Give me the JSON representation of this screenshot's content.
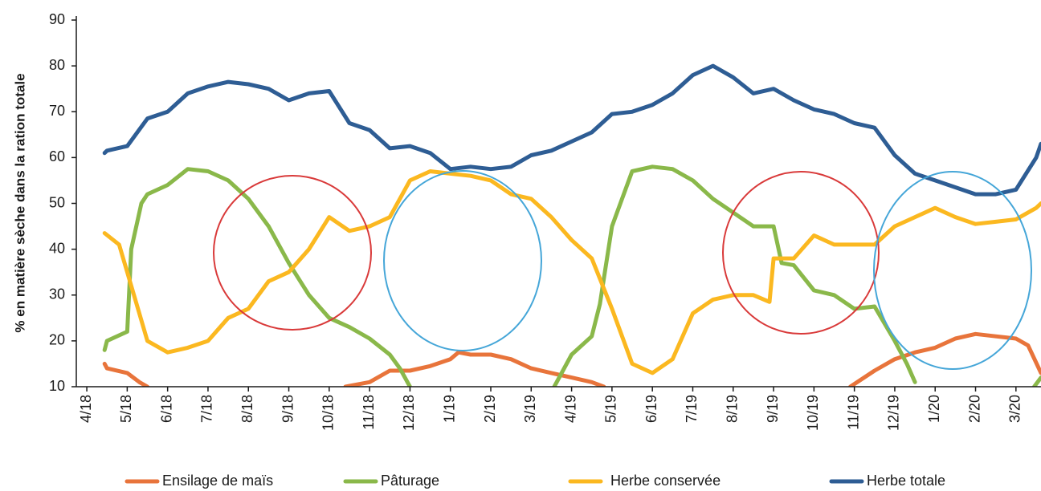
{
  "chart_data": {
    "type": "line",
    "y_label": "% en matière sèche dans la ration totale",
    "xlim": [
      -0.26,
      23.62
    ],
    "xticks": [
      {
        "value": 0,
        "label": "4/18"
      },
      {
        "value": 1,
        "label": "5/18"
      },
      {
        "value": 2,
        "label": "6/18"
      },
      {
        "value": 3,
        "label": "7/18"
      },
      {
        "value": 4,
        "label": "8/18"
      },
      {
        "value": 5,
        "label": "9/18"
      },
      {
        "value": 6,
        "label": "10/18"
      },
      {
        "value": 7,
        "label": "11/18"
      },
      {
        "value": 8,
        "label": "12/18"
      },
      {
        "value": 9,
        "label": "1/19"
      },
      {
        "value": 10,
        "label": "2/19"
      },
      {
        "value": 11,
        "label": "3/19"
      },
      {
        "value": 12,
        "label": "4/19"
      },
      {
        "value": 13,
        "label": "5/19"
      },
      {
        "value": 14,
        "label": "6/19"
      },
      {
        "value": 15,
        "label": "7/19"
      },
      {
        "value": 16,
        "label": "8/19"
      },
      {
        "value": 17,
        "label": "9/19"
      },
      {
        "value": 18,
        "label": "10/19"
      },
      {
        "value": 19,
        "label": "11/19"
      },
      {
        "value": 20,
        "label": "12/19"
      },
      {
        "value": 21,
        "label": "1/20"
      },
      {
        "value": 22,
        "label": "2/20"
      },
      {
        "value": 23,
        "label": "3/20"
      }
    ],
    "ylim": [
      10,
      90
    ],
    "yticks": [
      10,
      20,
      30,
      40,
      50,
      60,
      70,
      80,
      90
    ],
    "legend": "bottom",
    "series": [
      {
        "name": "Ensilage de maïs",
        "color": "#e8743b",
        "x": [
          0.44,
          0.5,
          1.0,
          1.3,
          1.5,
          4.0,
          6.4,
          7.0,
          7.5,
          8.0,
          8.5,
          9.0,
          9.2,
          9.5,
          10.0,
          10.5,
          11.0,
          11.5,
          12.0,
          12.5,
          12.8,
          16.0,
          18.9,
          19.5,
          20.0,
          20.5,
          21.0,
          21.5,
          22.0,
          22.5,
          23.0,
          23.3,
          23.62
        ],
        "values": [
          15,
          14,
          13,
          11,
          10,
          null,
          10,
          11,
          13.5,
          13.5,
          14.5,
          16,
          17.5,
          17,
          17,
          16,
          14,
          13,
          12,
          11,
          10,
          null,
          10,
          13.5,
          16,
          17.5,
          18.5,
          20.5,
          21.5,
          21,
          20.5,
          19,
          13
        ]
      },
      {
        "name": "Pâturage",
        "color": "#8ab84a",
        "x": [
          0.44,
          0.5,
          1.0,
          1.1,
          1.35,
          1.5,
          2.0,
          2.5,
          3.0,
          3.5,
          4.0,
          4.5,
          5.0,
          5.5,
          6.0,
          6.5,
          7.0,
          7.5,
          7.75,
          8.0,
          10.0,
          11.57,
          12.0,
          12.5,
          12.7,
          13.0,
          13.5,
          14.0,
          14.5,
          15.0,
          15.5,
          16.0,
          16.5,
          17.0,
          17.2,
          17.5,
          18.0,
          18.5,
          19.0,
          19.5,
          20.0,
          20.3,
          20.5,
          22.0,
          23.45,
          23.62
        ],
        "values": [
          18,
          20,
          22,
          40,
          50,
          52,
          54,
          57.5,
          57,
          55,
          51,
          45,
          37,
          30,
          25,
          23,
          20.5,
          17,
          14,
          10,
          null,
          10,
          17,
          21,
          28,
          45,
          57,
          58,
          57.5,
          55,
          51,
          48,
          45,
          45,
          37,
          36.5,
          31,
          30,
          27,
          27.5,
          20,
          15,
          11,
          null,
          10,
          12
        ]
      },
      {
        "name": "Herbe conservée",
        "color": "#fbb820",
        "x": [
          0.44,
          0.8,
          1.0,
          1.5,
          2.0,
          2.5,
          3.0,
          3.5,
          4.0,
          4.5,
          5.0,
          5.5,
          6.0,
          6.5,
          7.0,
          7.5,
          8.0,
          8.5,
          9.0,
          9.5,
          10.0,
          10.5,
          11.0,
          11.5,
          12.0,
          12.5,
          13.0,
          13.5,
          14.0,
          14.5,
          15.0,
          15.5,
          16.0,
          16.5,
          16.9,
          17.0,
          17.5,
          18.0,
          18.5,
          19.0,
          19.5,
          20.0,
          20.5,
          21.0,
          21.5,
          22.0,
          22.5,
          23.0,
          23.5,
          23.62
        ],
        "values": [
          43.5,
          41,
          35,
          20,
          17.5,
          18.5,
          20,
          25,
          27,
          33,
          35,
          40,
          47,
          44,
          45,
          47,
          55,
          57,
          56.5,
          56,
          55,
          52,
          51,
          47,
          42,
          38,
          27,
          15,
          13,
          16,
          26,
          29,
          30,
          30,
          28.5,
          38,
          38,
          43,
          41,
          41,
          41,
          45,
          47,
          49,
          47,
          45.5,
          46,
          46.5,
          49,
          50
        ]
      },
      {
        "name": "Herbe totale",
        "color": "#2e5d94",
        "x": [
          0.44,
          0.5,
          1.0,
          1.5,
          2.0,
          2.5,
          3.0,
          3.5,
          4.0,
          4.5,
          5.0,
          5.5,
          6.0,
          6.5,
          7.0,
          7.5,
          8.0,
          8.5,
          9.0,
          9.5,
          10.0,
          10.5,
          11.0,
          11.5,
          12.0,
          12.5,
          13.0,
          13.5,
          14.0,
          14.5,
          15.0,
          15.5,
          16.0,
          16.5,
          17.0,
          17.5,
          18.0,
          18.5,
          19.0,
          19.5,
          20.0,
          20.5,
          21.0,
          21.5,
          22.0,
          22.5,
          23.0,
          23.5,
          23.62
        ],
        "values": [
          61,
          61.5,
          62.5,
          68.5,
          70,
          74,
          75.5,
          76.5,
          76,
          75,
          72.5,
          74,
          74.5,
          67.5,
          66,
          62,
          62.5,
          61,
          57.5,
          58,
          57.5,
          58,
          60.5,
          61.5,
          63.5,
          65.5,
          69.5,
          70,
          71.5,
          74,
          78,
          80,
          77.5,
          74,
          75,
          72.5,
          70.5,
          69.5,
          67.5,
          66.5,
          60.5,
          56.5,
          55,
          53.5,
          52,
          52,
          53,
          60,
          63
        ]
      }
    ]
  }
}
